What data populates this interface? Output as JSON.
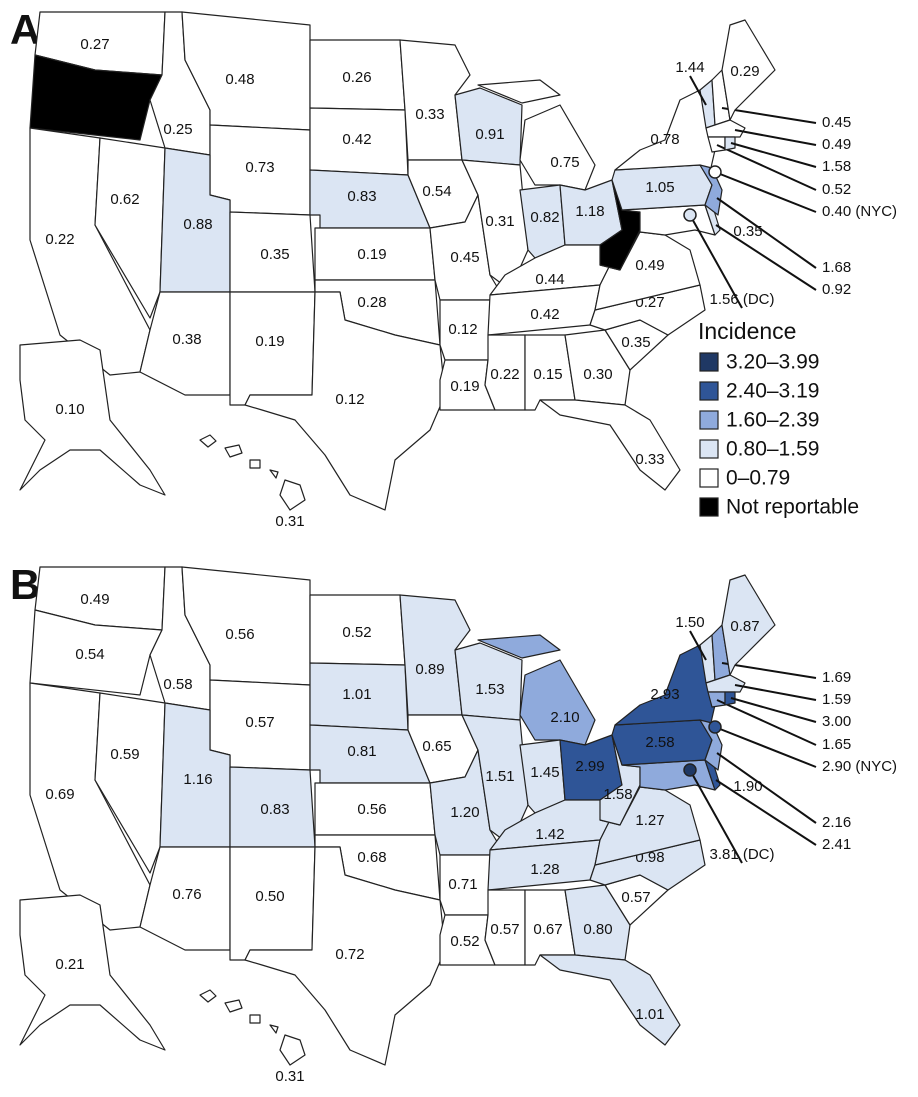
{
  "panels": [
    {
      "letter": "A",
      "regions": [
        {
          "label": "0.27",
          "color": "#ffffff"
        },
        {
          "color": "#000000"
        },
        {
          "label": "0.22",
          "color": "#ffffff"
        },
        {
          "label": "0.62",
          "color": "#ffffff"
        },
        {
          "label": "0.25",
          "color": "#ffffff"
        },
        {
          "label": "0.48",
          "color": "#ffffff"
        },
        {
          "label": "0.73",
          "color": "#ffffff"
        },
        {
          "label": "0.88",
          "color": "#dbe5f3"
        },
        {
          "label": "0.35",
          "color": "#ffffff"
        },
        {
          "label": "0.38",
          "color": "#ffffff"
        },
        {
          "label": "0.19",
          "color": "#ffffff"
        },
        {
          "label": "0.26",
          "color": "#ffffff"
        },
        {
          "label": "0.42",
          "color": "#ffffff"
        },
        {
          "label": "0.83",
          "color": "#dbe5f3"
        },
        {
          "label": "0.19",
          "color": "#ffffff"
        },
        {
          "label": "0.28",
          "color": "#ffffff"
        },
        {
          "label": "0.12",
          "color": "#ffffff"
        },
        {
          "label": "0.33",
          "color": "#ffffff"
        },
        {
          "label": "0.54",
          "color": "#ffffff"
        },
        {
          "label": "0.45",
          "color": "#ffffff"
        },
        {
          "label": "0.12",
          "color": "#ffffff"
        },
        {
          "label": "0.19",
          "color": "#ffffff"
        },
        {
          "label": "0.91",
          "color": "#dbe5f3"
        },
        {
          "label": "0.31",
          "color": "#ffffff"
        },
        {
          "label": "0.75",
          "color": "#ffffff"
        },
        {
          "label": "0.82",
          "color": "#dbe5f3"
        },
        {
          "label": "1.18",
          "color": "#dbe5f3"
        },
        {
          "label": "0.44",
          "color": "#ffffff"
        },
        {
          "label": "0.42",
          "color": "#ffffff"
        },
        {
          "label": "0.22",
          "color": "#ffffff"
        },
        {
          "label": "0.15",
          "color": "#ffffff"
        },
        {
          "label": "0.30",
          "color": "#ffffff"
        },
        {
          "label": "0.33",
          "color": "#ffffff"
        },
        {
          "label": "0.35",
          "color": "#ffffff"
        },
        {
          "label": "0.27",
          "color": "#ffffff"
        },
        {
          "label": "0.49",
          "color": "#ffffff"
        },
        {
          "color": "#000000"
        },
        {
          "label": "0.35",
          "color": "#ffffff"
        },
        {
          "label": "0.92",
          "color": "#dbe5f3"
        },
        {
          "label": "1.05",
          "color": "#dbe5f3"
        },
        {
          "label": "0.78",
          "color": "#ffffff"
        },
        {
          "label": "1.68",
          "color": "#8faadc"
        },
        {
          "label": "1.44",
          "color": "#dbe5f3"
        },
        {
          "label": "0.45",
          "color": "#ffffff"
        },
        {
          "label": "0.29",
          "color": "#ffffff"
        },
        {
          "label": "0.49",
          "color": "#ffffff"
        },
        {
          "label": "0.52",
          "color": "#ffffff"
        },
        {
          "label": "1.58",
          "color": "#dbe5f3"
        },
        {
          "label": "0.40 (NYC)",
          "color": "#ffffff"
        },
        {
          "label": "1.56 (DC)",
          "color": "#dbe5f3"
        },
        {
          "label": "0.10",
          "color": "#ffffff"
        },
        {
          "label": "0.31",
          "color": "#ffffff"
        }
      ]
    },
    {
      "letter": "B",
      "regions": [
        {
          "label": "0.49",
          "color": "#ffffff"
        },
        {
          "label": "0.54",
          "color": "#ffffff"
        },
        {
          "label": "0.69",
          "color": "#ffffff"
        },
        {
          "label": "0.59",
          "color": "#ffffff"
        },
        {
          "label": "0.58",
          "color": "#ffffff"
        },
        {
          "label": "0.56",
          "color": "#ffffff"
        },
        {
          "label": "0.57",
          "color": "#ffffff"
        },
        {
          "label": "1.16",
          "color": "#dbe5f3"
        },
        {
          "label": "0.83",
          "color": "#dbe5f3"
        },
        {
          "label": "0.76",
          "color": "#ffffff"
        },
        {
          "label": "0.50",
          "color": "#ffffff"
        },
        {
          "label": "0.52",
          "color": "#ffffff"
        },
        {
          "label": "1.01",
          "color": "#dbe5f3"
        },
        {
          "label": "0.81",
          "color": "#dbe5f3"
        },
        {
          "label": "0.56",
          "color": "#ffffff"
        },
        {
          "label": "0.68",
          "color": "#ffffff"
        },
        {
          "label": "0.72",
          "color": "#ffffff"
        },
        {
          "label": "0.89",
          "color": "#dbe5f3"
        },
        {
          "label": "0.65",
          "color": "#ffffff"
        },
        {
          "label": "1.20",
          "color": "#dbe5f3"
        },
        {
          "label": "0.71",
          "color": "#ffffff"
        },
        {
          "label": "0.52",
          "color": "#ffffff"
        },
        {
          "label": "1.53",
          "color": "#dbe5f3"
        },
        {
          "label": "1.51",
          "color": "#dbe5f3"
        },
        {
          "label": "2.10",
          "color": "#8faadc"
        },
        {
          "label": "1.45",
          "color": "#dbe5f3"
        },
        {
          "label": "2.99",
          "color": "#2f5597"
        },
        {
          "label": "1.42",
          "color": "#dbe5f3"
        },
        {
          "label": "1.28",
          "color": "#dbe5f3"
        },
        {
          "label": "0.57",
          "color": "#ffffff"
        },
        {
          "label": "0.67",
          "color": "#ffffff"
        },
        {
          "label": "0.80",
          "color": "#dbe5f3"
        },
        {
          "label": "1.01",
          "color": "#dbe5f3"
        },
        {
          "label": "0.57",
          "color": "#ffffff"
        },
        {
          "label": "0.98",
          "color": "#dbe5f3"
        },
        {
          "label": "1.27",
          "color": "#dbe5f3"
        },
        {
          "label": "1.58",
          "color": "#dbe5f3"
        },
        {
          "label": "1.90",
          "color": "#8faadc"
        },
        {
          "label": "2.41",
          "color": "#2f5597"
        },
        {
          "label": "2.58",
          "color": "#2f5597"
        },
        {
          "label": "2.93",
          "color": "#2f5597"
        },
        {
          "label": "2.16",
          "color": "#8faadc"
        },
        {
          "label": "1.50",
          "color": "#dbe5f3"
        },
        {
          "label": "1.69",
          "color": "#8faadc"
        },
        {
          "label": "0.87",
          "color": "#dbe5f3"
        },
        {
          "label": "1.59",
          "color": "#dbe5f3"
        },
        {
          "label": "1.65",
          "color": "#8faadc"
        },
        {
          "label": "3.00",
          "color": "#2f5597"
        },
        {
          "label": "2.90 (NYC)",
          "color": "#2f5597"
        },
        {
          "label": "3.81 (DC)",
          "color": "#1f3864"
        },
        {
          "label": "0.21",
          "color": "#ffffff"
        },
        {
          "label": "0.31",
          "color": "#ffffff"
        }
      ]
    }
  ],
  "legend": {
    "title": "Incidence",
    "items": [
      {
        "label": "3.20–3.99",
        "color": "#1f3864"
      },
      {
        "label": "2.40–3.19",
        "color": "#2f5597"
      },
      {
        "label": "1.60–2.39",
        "color": "#8faadc"
      },
      {
        "label": "0.80–1.59",
        "color": "#dbe5f3"
      },
      {
        "label": "0–0.79",
        "color": "#ffffff"
      },
      {
        "label": "Not reportable",
        "color": "#000000"
      }
    ]
  }
}
